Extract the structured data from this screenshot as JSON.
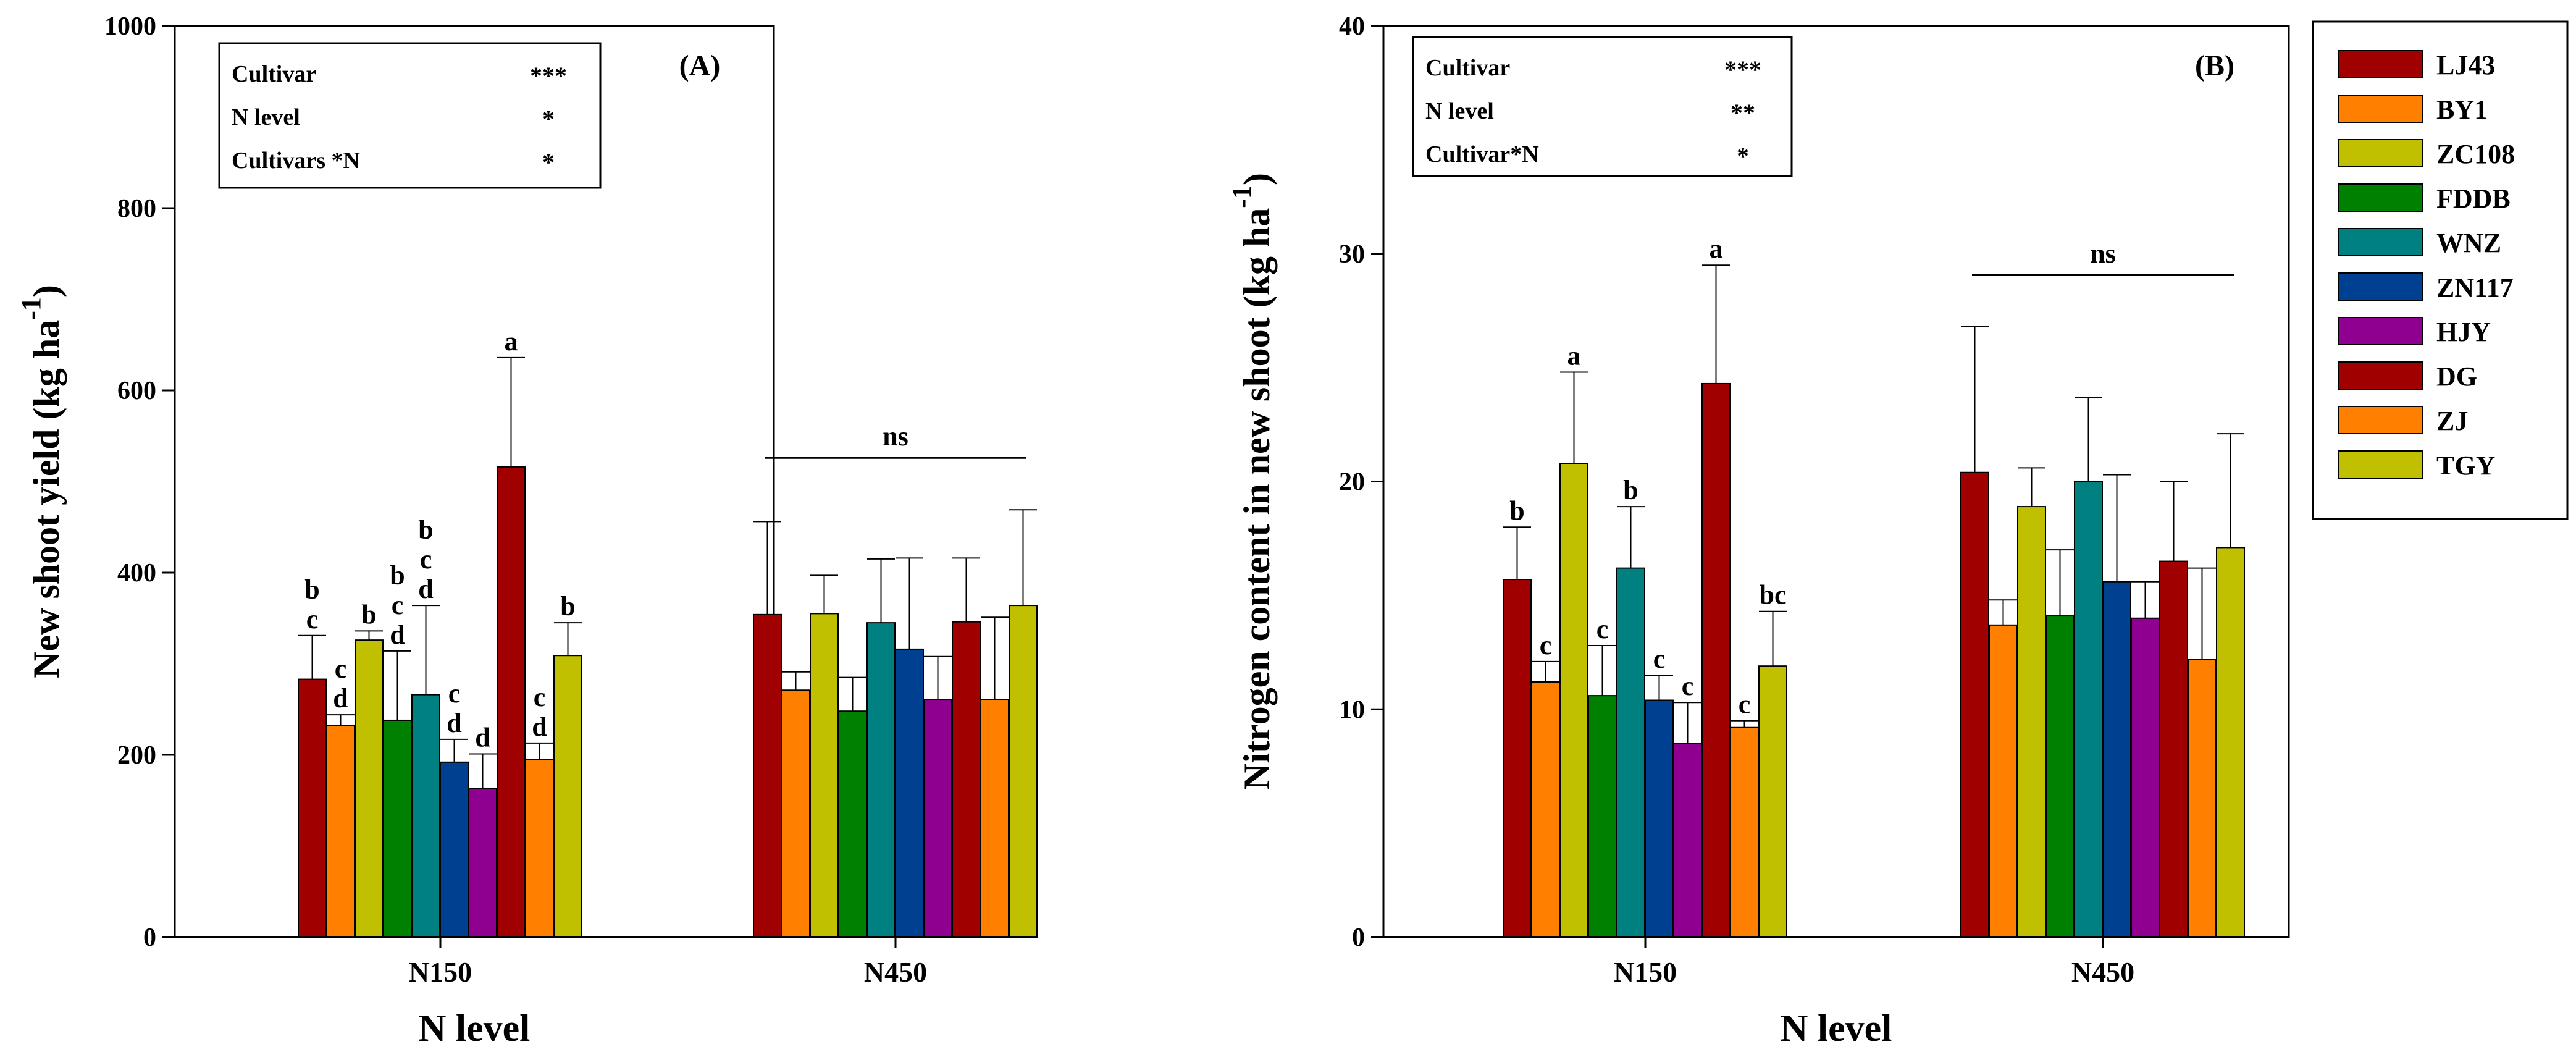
{
  "colors": {
    "LJ43": "#A00000",
    "BY1": "#FF8000",
    "ZC108": "#C0C000",
    "FDDB": "#008000",
    "WNZ": "#008080",
    "ZN117": "#004090",
    "HJY": "#900090",
    "DG": "#A00000",
    "ZJ": "#FF8000",
    "TGY": "#C0C000"
  },
  "legend": {
    "items": [
      "LJ43",
      "BY1",
      "ZC108",
      "FDDB",
      "WNZ",
      "ZN117",
      "HJY",
      "DG",
      "ZJ",
      "TGY"
    ],
    "placement": "right"
  },
  "chart_data": [
    {
      "type": "bar",
      "panel_label": "(A)",
      "xlabel": "N level",
      "ylabel": "New shoot yield (kg ha",
      "ylabel_sup": "-1",
      "ylabel_end": ")",
      "categories": [
        "N150",
        "N450"
      ],
      "ylim": [
        0,
        1000
      ],
      "yticks": [
        "0",
        "200",
        "400",
        "600",
        "800",
        "1000"
      ],
      "ytick_values": [
        0,
        200,
        400,
        600,
        800,
        1000
      ],
      "anova": [
        {
          "factor": "Cultivar",
          "sig": "***"
        },
        {
          "factor": "N level",
          "sig": "*"
        },
        {
          "factor": "Cultivars *N",
          "sig": "*"
        }
      ],
      "series": [
        {
          "name": "LJ43",
          "values": [
            283,
            354
          ],
          "errors": [
            48,
            102
          ]
        },
        {
          "name": "BY1",
          "values": [
            232,
            271
          ],
          "errors": [
            12,
            20
          ]
        },
        {
          "name": "ZC108",
          "values": [
            326,
            355
          ],
          "errors": [
            10,
            42
          ]
        },
        {
          "name": "FDDB",
          "values": [
            238,
            248
          ],
          "errors": [
            76,
            37
          ]
        },
        {
          "name": "WNZ",
          "values": [
            266,
            345
          ],
          "errors": [
            98,
            70
          ]
        },
        {
          "name": "ZN117",
          "values": [
            192,
            316
          ],
          "errors": [
            25,
            100
          ]
        },
        {
          "name": "HJY",
          "values": [
            163,
            261
          ],
          "errors": [
            38,
            47
          ]
        },
        {
          "name": "DG",
          "values": [
            516,
            346
          ],
          "errors": [
            120,
            70
          ]
        },
        {
          "name": "ZJ",
          "values": [
            195,
            261
          ],
          "errors": [
            18,
            90
          ]
        },
        {
          "name": "TGY",
          "values": [
            309,
            364
          ],
          "errors": [
            36,
            105
          ]
        }
      ],
      "letters": [
        [
          "b\nc",
          "c\nd",
          "b",
          "b\nc\nd",
          "b\nc\nd",
          "c\nd",
          "d",
          "a",
          "c\nd",
          "b"
        ],
        [
          "",
          "",
          "",
          "",
          "",
          "",
          "",
          "",
          "",
          ""
        ]
      ],
      "group_annotation": {
        "group": 1,
        "text": "ns"
      }
    },
    {
      "type": "bar",
      "panel_label": "(B)",
      "xlabel": "N level",
      "ylabel": "Nitrogen content in new shoot (kg ha",
      "ylabel_sup": "-1",
      "ylabel_end": ")",
      "categories": [
        "N150",
        "N450"
      ],
      "ylim": [
        0,
        40
      ],
      "yticks": [
        "0",
        "10",
        "20",
        "30",
        "40"
      ],
      "ytick_values": [
        0,
        10,
        20,
        30,
        40
      ],
      "anova": [
        {
          "factor": "Cultivar",
          "sig": "***"
        },
        {
          "factor": "N level",
          "sig": "**"
        },
        {
          "factor": "Cultivar*N",
          "sig": "*"
        }
      ],
      "series": [
        {
          "name": "LJ43",
          "values": [
            15.7,
            20.4
          ],
          "errors": [
            2.3,
            6.4
          ]
        },
        {
          "name": "BY1",
          "values": [
            11.2,
            13.7
          ],
          "errors": [
            0.9,
            1.1
          ]
        },
        {
          "name": "ZC108",
          "values": [
            20.8,
            18.9
          ],
          "errors": [
            4.0,
            1.7
          ]
        },
        {
          "name": "FDDB",
          "values": [
            10.6,
            14.1
          ],
          "errors": [
            2.2,
            2.9
          ]
        },
        {
          "name": "WNZ",
          "values": [
            16.2,
            20.0
          ],
          "errors": [
            2.7,
            3.7
          ]
        },
        {
          "name": "ZN117",
          "values": [
            10.4,
            15.6
          ],
          "errors": [
            1.1,
            4.7
          ]
        },
        {
          "name": "HJY",
          "values": [
            8.5,
            14.0
          ],
          "errors": [
            1.8,
            1.6
          ]
        },
        {
          "name": "DG",
          "values": [
            24.3,
            16.5
          ],
          "errors": [
            5.2,
            3.5
          ]
        },
        {
          "name": "ZJ",
          "values": [
            9.2,
            12.2
          ],
          "errors": [
            0.3,
            4.0
          ]
        },
        {
          "name": "TGY",
          "values": [
            11.9,
            17.1
          ],
          "errors": [
            2.4,
            5.0
          ]
        }
      ],
      "letters": [
        [
          "b",
          "c",
          "a",
          "c",
          "b",
          "c",
          "c",
          "a",
          "c",
          "bc"
        ],
        [
          "",
          "",
          "",
          "",
          "",
          "",
          "",
          "",
          "",
          ""
        ]
      ],
      "group_annotation": {
        "group": 1,
        "text": "ns"
      }
    }
  ]
}
